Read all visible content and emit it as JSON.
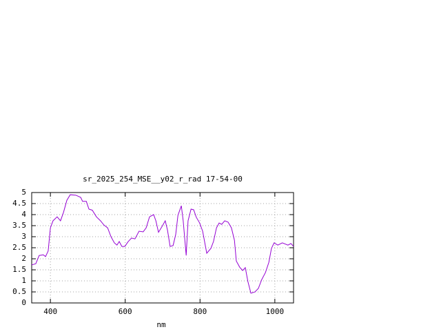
{
  "chart_data": {
    "type": "line",
    "title": "sr_2025_254_MSE__y02_r_rad 17-54-00",
    "x_label": "nm",
    "x": [
      350,
      361,
      370,
      381,
      387,
      394,
      400,
      407,
      418,
      427,
      435,
      444,
      453,
      468,
      481,
      486,
      496,
      503,
      512,
      523,
      534,
      543,
      553,
      562,
      571,
      578,
      584,
      591,
      599,
      608,
      617,
      626,
      637,
      648,
      656,
      665,
      676,
      682,
      689,
      698,
      707,
      713,
      720,
      728,
      735,
      741,
      750,
      755,
      763,
      768,
      776,
      783,
      790,
      799,
      807,
      818,
      829,
      836,
      844,
      851,
      858,
      866,
      875,
      884,
      892,
      897,
      906,
      914,
      921,
      928,
      936,
      947,
      956,
      965,
      975,
      984,
      991,
      998,
      1008,
      1020,
      1035,
      1043,
      1050
    ],
    "series": [
      {
        "color": "#9400d3",
        "values": [
          1.72,
          1.78,
          2.15,
          2.18,
          2.1,
          2.35,
          3.4,
          3.72,
          3.9,
          3.72,
          4.1,
          4.65,
          4.9,
          4.88,
          4.78,
          4.6,
          4.6,
          4.25,
          4.2,
          3.9,
          3.72,
          3.53,
          3.4,
          3.0,
          2.72,
          2.62,
          2.78,
          2.56,
          2.56,
          2.78,
          2.94,
          2.9,
          3.25,
          3.22,
          3.4,
          3.9,
          4.0,
          3.72,
          3.2,
          3.45,
          3.72,
          3.3,
          2.56,
          2.6,
          3.1,
          3.97,
          4.4,
          3.72,
          2.15,
          3.72,
          4.25,
          4.22,
          3.88,
          3.62,
          3.25,
          2.25,
          2.47,
          2.78,
          3.4,
          3.62,
          3.56,
          3.72,
          3.66,
          3.4,
          2.84,
          1.9,
          1.62,
          1.47,
          1.6,
          0.97,
          0.44,
          0.5,
          0.66,
          1.06,
          1.38,
          1.84,
          2.47,
          2.72,
          2.62,
          2.72,
          2.62,
          2.69,
          2.56
        ]
      }
    ],
    "xlim": [
      350,
      1050
    ],
    "xticks": [
      400,
      600,
      800,
      1000
    ],
    "ylim": [
      0,
      5
    ],
    "yticks": [
      0,
      0.5,
      1,
      1.5,
      2,
      2.5,
      3,
      3.5,
      4,
      4.5,
      5
    ],
    "grid": true
  }
}
